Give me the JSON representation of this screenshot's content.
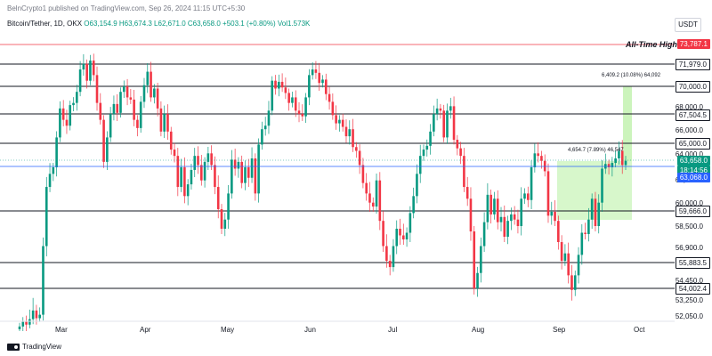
{
  "header": {
    "publisher": "BelnCrypto1 published on TradingView.com, Sep 26, 2024 11:15 UTC+5:30",
    "symbol": "Bitcoin/Tether, 1D, OKX",
    "ohlc_o": "O63,154.9",
    "ohlc_h": "H63,674.3",
    "ohlc_l": "L62,671.0",
    "ohlc_c": "C63,658.0",
    "change": "+503.1 (+0.80%)",
    "volume": "Vol1.573K",
    "unit": "USDT"
  },
  "annotations": {
    "ath": "All-Time High",
    "measure_top": "6,409.2 (10.08%) 64,092",
    "measure_mid": "4,654.7 (7.89%) 46,547"
  },
  "price_tags": {
    "ath": "73,787.1",
    "r1": "71,979.0",
    "r2": "70,000.0",
    "r3": "67,504.5",
    "r4": "65,000.0",
    "current": "63,658.0",
    "countdown": "18:14:56",
    "support_now": "63,068.0",
    "s1": "59,666.0",
    "s2": "55,883.5",
    "s3": "54,002.4"
  },
  "axis_ticks": [
    "68,000.0",
    "66,000.0",
    "64,000.0",
    "62,000.0",
    "60,000.0",
    "58,500.0",
    "56,900.0",
    "54,450.0",
    "53,250.0",
    "52,050.0"
  ],
  "months": [
    "Mar",
    "Apr",
    "May",
    "Jun",
    "Jul",
    "Aug",
    "Sep",
    "Oct"
  ],
  "footer": {
    "brand": "TradingView"
  },
  "colors": {
    "up": "#089981",
    "down": "#f23645",
    "ath_line": "#f23645",
    "level_line": "#131722",
    "zone_fill": "#b7f0a0"
  },
  "chart_data": {
    "type": "candlestick",
    "pair": "Bitcoin/Tether",
    "timeframe": "1D",
    "levels": [
      73787.1,
      71979.0,
      70000.0,
      67504.5,
      65000.0,
      63068.0,
      59666.0,
      55883.5,
      54002.4
    ],
    "closes": [
      51000,
      51500,
      51200,
      51800,
      52500,
      51900,
      52200,
      57000,
      61500,
      62500,
      63000,
      65500,
      68000,
      67000,
      66500,
      68300,
      68500,
      69500,
      71500,
      72000,
      70500,
      72300,
      71000,
      68500,
      67000,
      63500,
      65500,
      67500,
      68400,
      67600,
      69500,
      70000,
      69000,
      68800,
      67000,
      66300,
      68600,
      70100,
      71300,
      69000,
      69800,
      68000,
      66000,
      67500,
      66000,
      64500,
      64000,
      61500,
      63000,
      60800,
      61700,
      62800,
      64000,
      63200,
      62000,
      63500,
      64200,
      63200,
      61500,
      59800,
      58300,
      59000,
      61000,
      63700,
      62900,
      63500,
      61800,
      63000,
      62200,
      63800,
      61000,
      64900,
      66200,
      66500,
      67800,
      70500,
      69800,
      70400,
      69900,
      69400,
      68500,
      69000,
      67800,
      67500,
      67300,
      69000,
      71000,
      71500,
      71200,
      70300,
      70600,
      69300,
      68600,
      67400,
      66700,
      67000,
      66400,
      65600,
      66200,
      64700,
      64400,
      63200,
      61800,
      61000,
      60300,
      60000,
      62000,
      58900,
      57000,
      56000,
      55500,
      57000,
      58300,
      57800,
      57500,
      58000,
      59500,
      60800,
      62500,
      64000,
      64500,
      64800,
      66000,
      67500,
      68000,
      67800,
      65500,
      67800,
      68200,
      65300,
      64600,
      64000,
      61500,
      60600,
      58100,
      54000,
      55000,
      57000,
      58800,
      60900,
      59400,
      60600,
      58800,
      59200,
      57700,
      58900,
      59400,
      59000,
      58500,
      60600,
      61000,
      60500,
      63000,
      64200,
      64000,
      63600,
      62700,
      59300,
      59600,
      58900,
      57300,
      56000,
      56500,
      54800,
      53900,
      54800,
      56400,
      58000,
      57900,
      59000,
      60600,
      58500,
      60300,
      62900,
      63300,
      63000,
      63400,
      63800,
      64400,
      63200,
      63600
    ]
  }
}
